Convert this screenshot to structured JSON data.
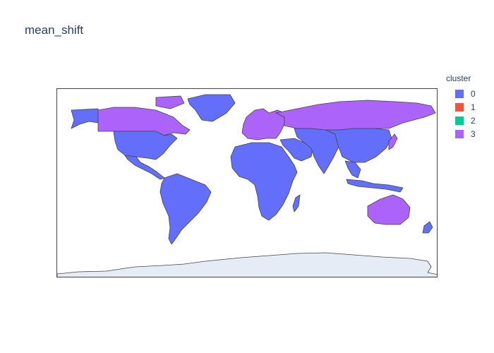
{
  "title": "mean_shift",
  "legend": {
    "title": "cluster",
    "items": [
      {
        "label": "0",
        "color": "#636efa"
      },
      {
        "label": "1",
        "color": "#ef553b"
      },
      {
        "label": "2",
        "color": "#00cc96"
      },
      {
        "label": "3",
        "color": "#ab63fa"
      }
    ]
  },
  "map": {
    "projection": "equirectangular",
    "land_outline_color": "#444444",
    "antarctica_color": "#e5ecf6",
    "regions": [
      {
        "region": "North America (USA, Mexico, Central America, Alaska)",
        "cluster": "0"
      },
      {
        "region": "Canada",
        "cluster": "3"
      },
      {
        "region": "Greenland",
        "cluster": "0"
      },
      {
        "region": "South America",
        "cluster": "0"
      },
      {
        "region": "Europe",
        "cluster": "3"
      },
      {
        "region": "Russia",
        "cluster": "3"
      },
      {
        "region": "Africa",
        "cluster": "0"
      },
      {
        "region": "Middle East",
        "cluster": "0"
      },
      {
        "region": "Central and South Asia",
        "cluster": "0"
      },
      {
        "region": "China and East Asia",
        "cluster": "0"
      },
      {
        "region": "Japan",
        "cluster": "3"
      },
      {
        "region": "Southeast Asia",
        "cluster": "0"
      },
      {
        "region": "Australia",
        "cluster": "3"
      },
      {
        "region": "New Zealand",
        "cluster": "0"
      }
    ]
  }
}
